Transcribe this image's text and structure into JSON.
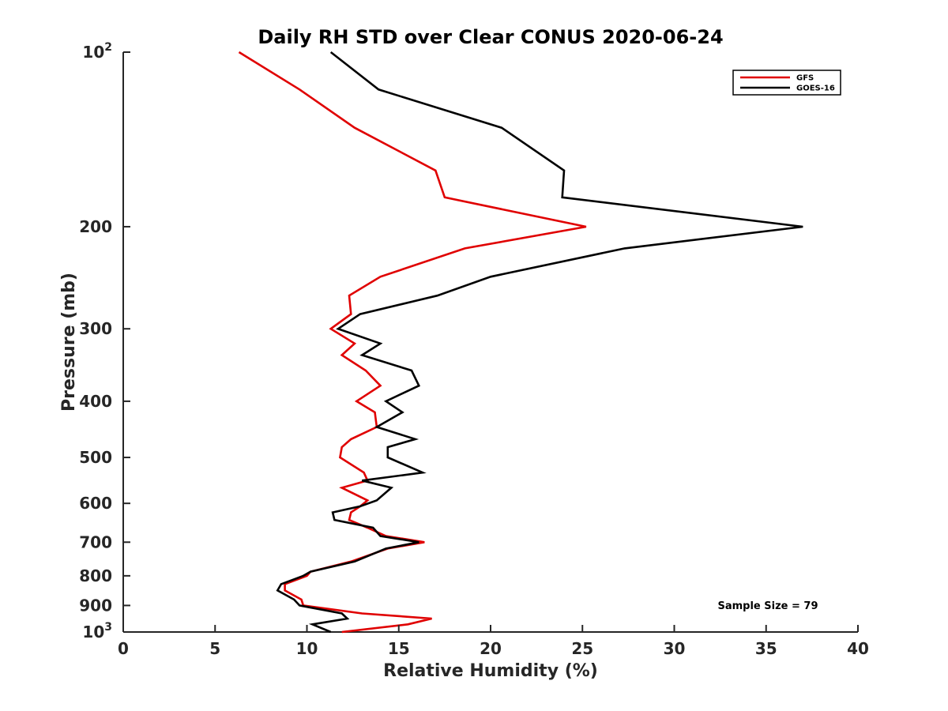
{
  "chart_data": {
    "type": "line",
    "title": "Daily RH STD over Clear CONUS 2020-06-24",
    "xlabel": "Relative Humidity (%)",
    "ylabel": "Pressure (mb)",
    "xlim": [
      0,
      40
    ],
    "ylim": [
      100,
      1000
    ],
    "y_scale": "log",
    "y_reversed": true,
    "grid": false,
    "x_ticks": [
      0,
      5,
      10,
      15,
      20,
      25,
      30,
      35,
      40
    ],
    "y_ticks": [
      {
        "value": 100,
        "base": "10",
        "exp": "2"
      },
      {
        "value": 200,
        "label": "200"
      },
      {
        "value": 300,
        "label": "300"
      },
      {
        "value": 400,
        "label": "400"
      },
      {
        "value": 500,
        "label": "500"
      },
      {
        "value": 600,
        "label": "600"
      },
      {
        "value": 700,
        "label": "700"
      },
      {
        "value": 800,
        "label": "800"
      },
      {
        "value": 900,
        "label": "900"
      },
      {
        "value": 1000,
        "base": "10",
        "exp": "3"
      }
    ],
    "legend_position": "top-right",
    "annotation": "Sample Size = 79",
    "series": [
      {
        "name": "GFS",
        "color": "#e00000",
        "points": [
          [
            6.3,
            100
          ],
          [
            9.6,
            116
          ],
          [
            12.6,
            135
          ],
          [
            17.0,
            160
          ],
          [
            17.5,
            178
          ],
          [
            25.2,
            200
          ],
          [
            18.6,
            218
          ],
          [
            14.0,
            244
          ],
          [
            12.3,
            263
          ],
          [
            12.4,
            283
          ],
          [
            11.3,
            300
          ],
          [
            12.6,
            318
          ],
          [
            11.9,
            333
          ],
          [
            13.2,
            354
          ],
          [
            14.0,
            376
          ],
          [
            12.7,
            400
          ],
          [
            13.7,
            418
          ],
          [
            13.8,
            443
          ],
          [
            12.4,
            465
          ],
          [
            11.9,
            480
          ],
          [
            11.8,
            500
          ],
          [
            13.1,
            531
          ],
          [
            13.3,
            548
          ],
          [
            11.9,
            564
          ],
          [
            13.3,
            593
          ],
          [
            12.9,
            607
          ],
          [
            12.4,
            622
          ],
          [
            12.3,
            641
          ],
          [
            13.3,
            661
          ],
          [
            14.3,
            683
          ],
          [
            16.4,
            700
          ],
          [
            14.4,
            718
          ],
          [
            12.4,
            756
          ],
          [
            10.2,
            787
          ],
          [
            10.0,
            800
          ],
          [
            8.8,
            827
          ],
          [
            8.8,
            848
          ],
          [
            9.7,
            879
          ],
          [
            9.8,
            900
          ],
          [
            13.0,
            929
          ],
          [
            16.8,
            948
          ],
          [
            15.5,
            970
          ],
          [
            11.9,
            1000
          ]
        ]
      },
      {
        "name": "GOES-16",
        "color": "#000000",
        "points": [
          [
            11.3,
            100
          ],
          [
            13.9,
            116
          ],
          [
            20.6,
            135
          ],
          [
            24.0,
            160
          ],
          [
            23.9,
            178
          ],
          [
            37.0,
            200
          ],
          [
            27.3,
            218
          ],
          [
            20.0,
            244
          ],
          [
            17.1,
            263
          ],
          [
            12.9,
            283
          ],
          [
            11.7,
            300
          ],
          [
            14.0,
            318
          ],
          [
            13.0,
            333
          ],
          [
            15.7,
            354
          ],
          [
            16.1,
            376
          ],
          [
            14.3,
            400
          ],
          [
            15.2,
            418
          ],
          [
            13.8,
            443
          ],
          [
            15.9,
            465
          ],
          [
            14.4,
            480
          ],
          [
            14.4,
            500
          ],
          [
            16.3,
            531
          ],
          [
            13.0,
            548
          ],
          [
            14.6,
            564
          ],
          [
            13.8,
            593
          ],
          [
            12.9,
            607
          ],
          [
            11.4,
            622
          ],
          [
            11.5,
            641
          ],
          [
            13.6,
            661
          ],
          [
            14.0,
            683
          ],
          [
            16.1,
            700
          ],
          [
            14.3,
            718
          ],
          [
            12.6,
            756
          ],
          [
            10.2,
            787
          ],
          [
            9.8,
            800
          ],
          [
            8.6,
            827
          ],
          [
            8.4,
            848
          ],
          [
            9.3,
            879
          ],
          [
            9.6,
            900
          ],
          [
            11.9,
            929
          ],
          [
            12.2,
            948
          ],
          [
            10.3,
            970
          ],
          [
            11.3,
            1000
          ]
        ]
      }
    ]
  }
}
